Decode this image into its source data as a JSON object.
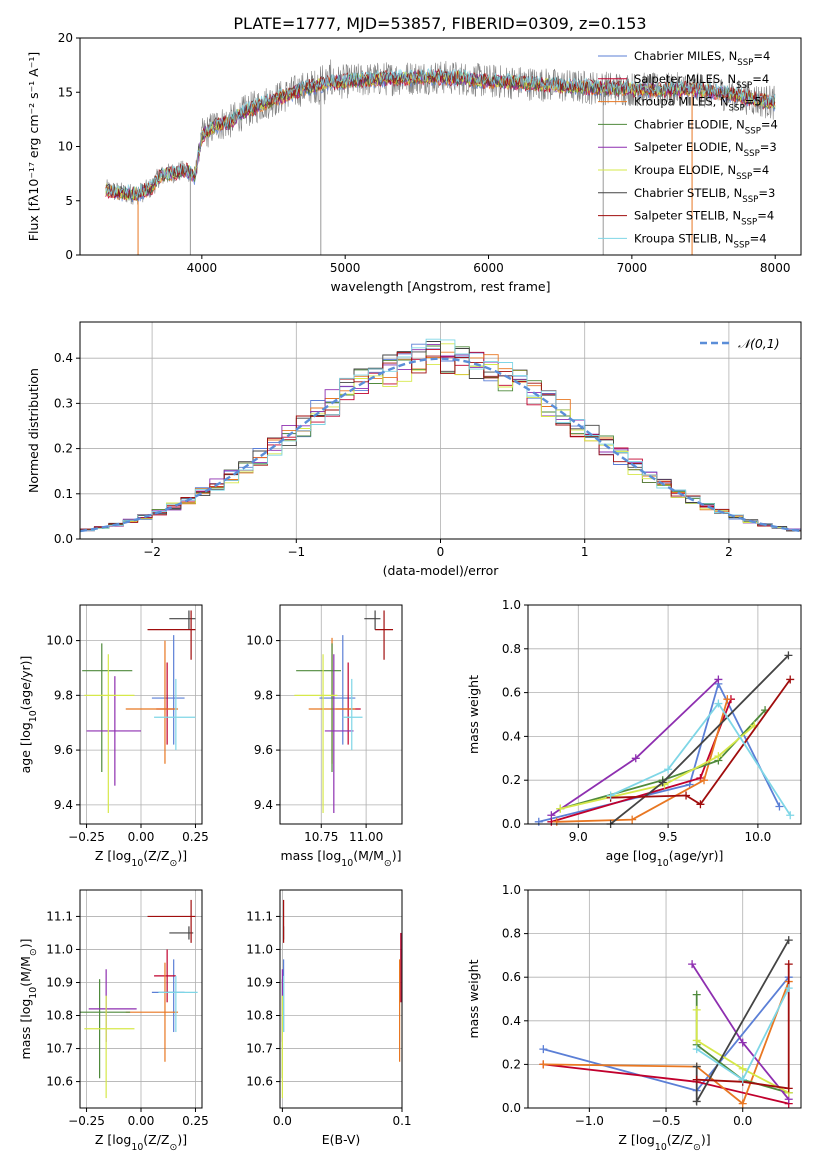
{
  "figure_title": "PLATE=1777, MJD=53857, FIBERID=0309, z=0.153",
  "model_colors": {
    "Chabrier MILES": "#5b7fd6",
    "Salpeter MILES": "#c1002d",
    "Kroupa MILES": "#e87722",
    "Chabrier ELODIE": "#4f8a3c",
    "Salpeter ELODIE": "#8e2fb0",
    "Kroupa ELODIE": "#d6e84a",
    "Chabrier STELIB": "#444444",
    "Salpeter STELIB": "#a00d0d",
    "Kroupa STELIB": "#7fd6e6"
  },
  "chart_data": [
    {
      "id": "spectrum",
      "type": "line",
      "title": "",
      "xlabel": "wavelength [Angstrom, rest frame]",
      "ylabel": "Flux [fλ10⁻¹⁷ erg cm⁻² s⁻¹ A⁻¹]",
      "xlim": [
        3150,
        8180
      ],
      "ylim": [
        0,
        20
      ],
      "xticks": [
        4000,
        5000,
        6000,
        7000,
        8000
      ],
      "yticks": [
        0,
        5,
        10,
        15,
        20
      ],
      "grid": false,
      "legend_position": "right",
      "data_color": "#808080",
      "continuum": {
        "x": [
          3330,
          3450,
          3550,
          3650,
          3700,
          3800,
          3900,
          3950,
          4000,
          4100,
          4200,
          4300,
          4400,
          4500,
          4600,
          4700,
          4800,
          4900,
          5000,
          5200,
          5400,
          5600,
          5800,
          6000,
          6200,
          6400,
          6600,
          6800,
          7000,
          7200,
          7400,
          7600,
          7800,
          8000
        ],
        "y": [
          6.0,
          5.7,
          5.6,
          6.2,
          7.2,
          7.6,
          7.8,
          7.2,
          11.0,
          12.0,
          12.3,
          13.2,
          13.8,
          14.3,
          14.8,
          15.3,
          15.6,
          15.9,
          16.0,
          16.2,
          16.3,
          16.4,
          16.3,
          16.0,
          15.9,
          15.7,
          15.5,
          15.4,
          15.3,
          15.2,
          15.3,
          15.0,
          14.5,
          14.0
        ]
      },
      "legend": [
        {
          "name": "Chabrier MILES, N$_{SSP}$=4"
        },
        {
          "name": "Salpeter MILES, N$_{SSP}$=4"
        },
        {
          "name": "Kroupa MILES, N$_{SSP}$=5"
        },
        {
          "name": "Chabrier ELODIE, N$_{SSP}$=4"
        },
        {
          "name": "Salpeter ELODIE, N$_{SSP}$=3"
        },
        {
          "name": "Kroupa ELODIE, N$_{SSP}$=4"
        },
        {
          "name": "Chabrier STELIB, N$_{SSP}$=3"
        },
        {
          "name": "Salpeter STELIB, N$_{SSP}$=4"
        },
        {
          "name": "Kroupa STELIB, N$_{SSP}$=4"
        }
      ]
    },
    {
      "id": "residuals",
      "type": "histogram",
      "title": "",
      "xlabel": "(data-model)/error",
      "ylabel": "Normed distribution",
      "xlim": [
        -2.5,
        2.5
      ],
      "ylim": [
        0,
        0.48
      ],
      "xticks": [
        -2,
        -1,
        0,
        1,
        2
      ],
      "yticks": [
        0.0,
        0.1,
        0.2,
        0.3,
        0.4
      ],
      "grid": true,
      "bin_width": 0.1,
      "legend": [
        {
          "name": "$\\mathcal{N}(0,1)$",
          "color": "#5b8ed8",
          "style": "dashed"
        }
      ]
    },
    {
      "id": "age_vs_Z",
      "type": "errorbar",
      "xlabel": "Z [log$_{10}$(Z/Z$_\\odot$)]",
      "ylabel": "age  [log$_{10}$($age/yr$)]",
      "xlim": [
        -0.28,
        0.28
      ],
      "ylim": [
        9.33,
        10.13
      ],
      "xticks": [
        -0.25,
        0.0,
        0.25
      ],
      "yticks": [
        9.4,
        9.6,
        9.8,
        10.0
      ],
      "grid": true,
      "points": [
        {
          "model": "Chabrier MILES",
          "x": 0.15,
          "xerr": [
            0.1,
            0.05
          ],
          "y": 9.79,
          "yerr": [
            0.17,
            0.23
          ]
        },
        {
          "model": "Salpeter MILES",
          "x": 0.12,
          "xerr": [
            0.05,
            0.03
          ],
          "y": 9.75,
          "yerr": [
            0.13,
            0.17
          ]
        },
        {
          "model": "Kroupa MILES",
          "x": 0.11,
          "xerr": [
            0.18,
            0.06
          ],
          "y": 9.75,
          "yerr": [
            0.2,
            0.25
          ]
        },
        {
          "model": "Chabrier ELODIE",
          "x": -0.18,
          "xerr": [
            0.09,
            0.14
          ],
          "y": 9.89,
          "yerr": [
            0.37,
            0.1
          ]
        },
        {
          "model": "Salpeter ELODIE",
          "x": -0.12,
          "xerr": [
            0.13,
            0.12
          ],
          "y": 9.67,
          "yerr": [
            0.2,
            0.2
          ]
        },
        {
          "model": "Kroupa ELODIE",
          "x": -0.15,
          "xerr": [
            0.11,
            0.12
          ],
          "y": 9.8,
          "yerr": [
            0.43,
            0.15
          ]
        },
        {
          "model": "Chabrier STELIB",
          "x": 0.22,
          "xerr": [
            0.09,
            0.03
          ],
          "y": 10.08,
          "yerr": [
            0.04,
            0.03
          ]
        },
        {
          "model": "Salpeter STELIB",
          "x": 0.23,
          "xerr": [
            0.2,
            0.02
          ],
          "y": 10.04,
          "yerr": [
            0.11,
            0.07
          ]
        },
        {
          "model": "Kroupa STELIB",
          "x": 0.16,
          "xerr": [
            0.1,
            0.09
          ],
          "y": 9.72,
          "yerr": [
            0.12,
            0.14
          ]
        }
      ]
    },
    {
      "id": "age_vs_mass",
      "type": "errorbar",
      "xlabel": "mass [log$_{10}$($M/M_\\odot$)]",
      "ylabel": "",
      "xlim": [
        10.52,
        11.2
      ],
      "ylim": [
        9.33,
        10.13
      ],
      "xticks": [
        10.75,
        11.0
      ],
      "yticks": [
        9.4,
        9.6,
        9.8,
        10.0
      ],
      "grid": true,
      "points": [
        {
          "model": "Chabrier MILES",
          "x": 10.87,
          "xerr": [
            0.13,
            0.07
          ],
          "y": 9.79,
          "yerr": [
            0.17,
            0.23
          ]
        },
        {
          "model": "Salpeter MILES",
          "x": 10.9,
          "xerr": [
            0.07,
            0.07
          ],
          "y": 9.75,
          "yerr": [
            0.13,
            0.17
          ]
        },
        {
          "model": "Kroupa MILES",
          "x": 10.81,
          "xerr": [
            0.13,
            0.13
          ],
          "y": 9.75,
          "yerr": [
            0.2,
            0.26
          ]
        },
        {
          "model": "Chabrier ELODIE",
          "x": 10.81,
          "xerr": [
            0.2,
            0.05
          ],
          "y": 9.89,
          "yerr": [
            0.37,
            0.1
          ]
        },
        {
          "model": "Salpeter ELODIE",
          "x": 10.82,
          "xerr": [
            0.05,
            0.11
          ],
          "y": 9.67,
          "yerr": [
            0.3,
            0.28
          ]
        },
        {
          "model": "Kroupa ELODIE",
          "x": 10.76,
          "xerr": [
            0.16,
            0.08
          ],
          "y": 9.8,
          "yerr": [
            0.43,
            0.15
          ]
        },
        {
          "model": "Chabrier STELIB",
          "x": 11.05,
          "xerr": [
            0.06,
            0.03
          ],
          "y": 10.08,
          "yerr": [
            0.04,
            0.03
          ]
        },
        {
          "model": "Salpeter STELIB",
          "x": 11.1,
          "xerr": [
            0.05,
            0.05
          ],
          "y": 10.04,
          "yerr": [
            0.11,
            0.07
          ]
        },
        {
          "model": "Kroupa STELIB",
          "x": 10.92,
          "xerr": [
            0.05,
            0.06
          ],
          "y": 9.72,
          "yerr": [
            0.12,
            0.14
          ]
        }
      ]
    },
    {
      "id": "weight_vs_age",
      "type": "line",
      "xlabel": "age  [log$_{10}$($age/yr$)]",
      "ylabel": "mass weight",
      "xlim": [
        8.72,
        10.24
      ],
      "ylim": [
        0,
        1
      ],
      "xticks": [
        9.0,
        9.5,
        10.0
      ],
      "yticks": [
        0.0,
        0.2,
        0.4,
        0.6,
        0.8,
        1.0
      ],
      "grid": true,
      "series": [
        {
          "model": "Chabrier MILES",
          "x": [
            8.78,
            9.62,
            9.78,
            10.12
          ],
          "y": [
            0.01,
            0.18,
            0.64,
            0.08
          ]
        },
        {
          "model": "Salpeter MILES",
          "x": [
            8.85,
            9.68,
            9.85
          ],
          "y": [
            0.01,
            0.21,
            0.57
          ]
        },
        {
          "model": "Kroupa MILES",
          "x": [
            8.88,
            9.3,
            9.7,
            9.83
          ],
          "y": [
            0.01,
            0.02,
            0.2,
            0.57
          ]
        },
        {
          "model": "Chabrier ELODIE",
          "x": [
            8.9,
            9.47,
            9.78,
            10.04
          ],
          "y": [
            0.07,
            0.2,
            0.29,
            0.52
          ]
        },
        {
          "model": "Salpeter ELODIE",
          "x": [
            8.85,
            9.32,
            9.78
          ],
          "y": [
            0.04,
            0.3,
            0.66
          ]
        },
        {
          "model": "Kroupa ELODIE",
          "x": [
            8.9,
            9.48,
            9.78,
            9.98
          ],
          "y": [
            0.07,
            0.18,
            0.31,
            0.45
          ]
        },
        {
          "model": "Chabrier STELIB",
          "x": [
            9.18,
            9.47,
            10.17
          ],
          "y": [
            0.0,
            0.19,
            0.77
          ]
        },
        {
          "model": "Salpeter STELIB",
          "x": [
            9.18,
            9.6,
            9.68,
            10.18
          ],
          "y": [
            0.12,
            0.13,
            0.09,
            0.66
          ]
        },
        {
          "model": "Kroupa STELIB",
          "x": [
            9.18,
            9.5,
            9.78,
            10.18
          ],
          "y": [
            0.13,
            0.25,
            0.55,
            0.04
          ]
        }
      ]
    },
    {
      "id": "mass_vs_Z",
      "type": "errorbar",
      "xlabel": "Z [log$_{10}$(Z/Z$_\\odot$)]",
      "ylabel": "mass [log$_{10}$($M/M_\\odot$)]",
      "xlim": [
        -0.28,
        0.28
      ],
      "ylim": [
        10.52,
        11.18
      ],
      "xticks": [
        -0.25,
        0.0,
        0.25
      ],
      "yticks": [
        10.6,
        10.7,
        10.8,
        10.9,
        11.0,
        11.1
      ],
      "grid": true,
      "points": [
        {
          "model": "Chabrier MILES",
          "x": 0.15,
          "xerr": [
            0.1,
            0.05
          ],
          "y": 10.87,
          "yerr": [
            0.12,
            0.1
          ]
        },
        {
          "model": "Salpeter MILES",
          "x": 0.12,
          "xerr": [
            0.06,
            0.04
          ],
          "y": 10.92,
          "yerr": [
            0.08,
            0.08
          ]
        },
        {
          "model": "Kroupa MILES",
          "x": 0.11,
          "xerr": [
            0.18,
            0.06
          ],
          "y": 10.81,
          "yerr": [
            0.15,
            0.15
          ]
        },
        {
          "model": "Chabrier ELODIE",
          "x": -0.19,
          "xerr": [
            0.1,
            0.14
          ],
          "y": 10.81,
          "yerr": [
            0.2,
            0.1
          ]
        },
        {
          "model": "Salpeter ELODIE",
          "x": -0.16,
          "xerr": [
            0.08,
            0.14
          ],
          "y": 10.82,
          "yerr": [
            0.1,
            0.12
          ]
        },
        {
          "model": "Kroupa ELODIE",
          "x": -0.16,
          "xerr": [
            0.1,
            0.13
          ],
          "y": 10.76,
          "yerr": [
            0.21,
            0.1
          ]
        },
        {
          "model": "Chabrier STELIB",
          "x": 0.22,
          "xerr": [
            0.09,
            0.02
          ],
          "y": 11.05,
          "yerr": [
            0.02,
            0.02
          ]
        },
        {
          "model": "Salpeter STELIB",
          "x": 0.23,
          "xerr": [
            0.2,
            0.02
          ],
          "y": 11.1,
          "yerr": [
            0.08,
            0.05
          ]
        },
        {
          "model": "Kroupa STELIB",
          "x": 0.16,
          "xerr": [
            0.08,
            0.1
          ],
          "y": 10.87,
          "yerr": [
            0.12,
            0.05
          ]
        }
      ]
    },
    {
      "id": "mass_vs_ebv",
      "type": "errorbar",
      "xlabel": "E(B-V)",
      "ylabel": "",
      "xlim": [
        -0.002,
        0.1
      ],
      "ylim": [
        10.52,
        11.18
      ],
      "xticks": [
        0.0,
        0.1
      ],
      "yticks": [
        10.6,
        10.7,
        10.8,
        10.9,
        11.0,
        11.1
      ],
      "grid": true,
      "points": [
        {
          "model": "Chabrier MILES",
          "x": 0.001,
          "xerr": [
            0,
            0
          ],
          "y": 10.87,
          "yerr": [
            0.12,
            0.1
          ]
        },
        {
          "model": "Salpeter MILES",
          "x": 0.099,
          "xerr": [
            0,
            0
          ],
          "y": 10.92,
          "yerr": [
            0.08,
            0.13
          ]
        },
        {
          "model": "Kroupa MILES",
          "x": 0.098,
          "xerr": [
            0,
            0
          ],
          "y": 10.81,
          "yerr": [
            0.15,
            0.16
          ]
        },
        {
          "model": "Chabrier ELODIE",
          "x": 0.0,
          "xerr": [
            0,
            0
          ],
          "y": 10.81,
          "yerr": [
            0.2,
            0.1
          ]
        },
        {
          "model": "Salpeter ELODIE",
          "x": 0.0,
          "xerr": [
            0,
            0
          ],
          "y": 10.82,
          "yerr": [
            0.1,
            0.12
          ]
        },
        {
          "model": "Kroupa ELODIE",
          "x": 0.0,
          "xerr": [
            0,
            0
          ],
          "y": 10.76,
          "yerr": [
            0.21,
            0.1
          ]
        },
        {
          "model": "Chabrier STELIB",
          "x": 0.001,
          "xerr": [
            0,
            0
          ],
          "y": 11.05,
          "yerr": [
            0.02,
            0.02
          ]
        },
        {
          "model": "Salpeter STELIB",
          "x": 0.001,
          "xerr": [
            0,
            0
          ],
          "y": 11.1,
          "yerr": [
            0.08,
            0.05
          ]
        },
        {
          "model": "Kroupa STELIB",
          "x": 0.001,
          "xerr": [
            0,
            0
          ],
          "y": 10.87,
          "yerr": [
            0.12,
            0.05
          ]
        }
      ]
    },
    {
      "id": "weight_vs_Z",
      "type": "line",
      "xlabel": "Z [log$_{10}$(Z/Z$_\\odot$)]",
      "ylabel": "mass weight",
      "xlim": [
        -1.4,
        0.38
      ],
      "ylim": [
        0,
        1
      ],
      "xticks": [
        -1.0,
        -0.5,
        0.0
      ],
      "yticks": [
        0.0,
        0.2,
        0.4,
        0.6,
        0.8,
        1.0
      ],
      "grid": true,
      "series": [
        {
          "model": "Chabrier MILES",
          "x": [
            -1.3,
            -0.3,
            0.3
          ],
          "y": [
            0.27,
            0.08,
            0.6
          ]
        },
        {
          "model": "Salpeter MILES",
          "x": [
            -1.3,
            -0.3,
            0.3
          ],
          "y": [
            0.2,
            0.12,
            0.02
          ]
        },
        {
          "model": "Kroupa MILES",
          "x": [
            -1.3,
            -0.3,
            0.0,
            0.3
          ],
          "y": [
            0.2,
            0.19,
            0.02,
            0.58
          ]
        },
        {
          "model": "Chabrier ELODIE",
          "x": [
            -0.3,
            -0.3,
            0.0,
            0.3
          ],
          "y": [
            0.52,
            0.29,
            0.13,
            0.07
          ]
        },
        {
          "model": "Salpeter ELODIE",
          "x": [
            -0.33,
            0.0,
            0.3
          ],
          "y": [
            0.66,
            0.3,
            0.04
          ]
        },
        {
          "model": "Kroupa ELODIE",
          "x": [
            -0.3,
            -0.3,
            0.0,
            0.3
          ],
          "y": [
            0.45,
            0.31,
            0.18,
            0.07
          ]
        },
        {
          "model": "Chabrier STELIB",
          "x": [
            -0.3,
            -0.3,
            0.3
          ],
          "y": [
            0.19,
            0.03,
            0.77
          ]
        },
        {
          "model": "Salpeter STELIB",
          "x": [
            -0.3,
            0.0,
            0.3,
            0.3
          ],
          "y": [
            0.13,
            0.12,
            0.09,
            0.66
          ]
        },
        {
          "model": "Kroupa STELIB",
          "x": [
            -0.3,
            0.0,
            0.3
          ],
          "y": [
            0.27,
            0.13,
            0.55
          ]
        }
      ]
    }
  ]
}
